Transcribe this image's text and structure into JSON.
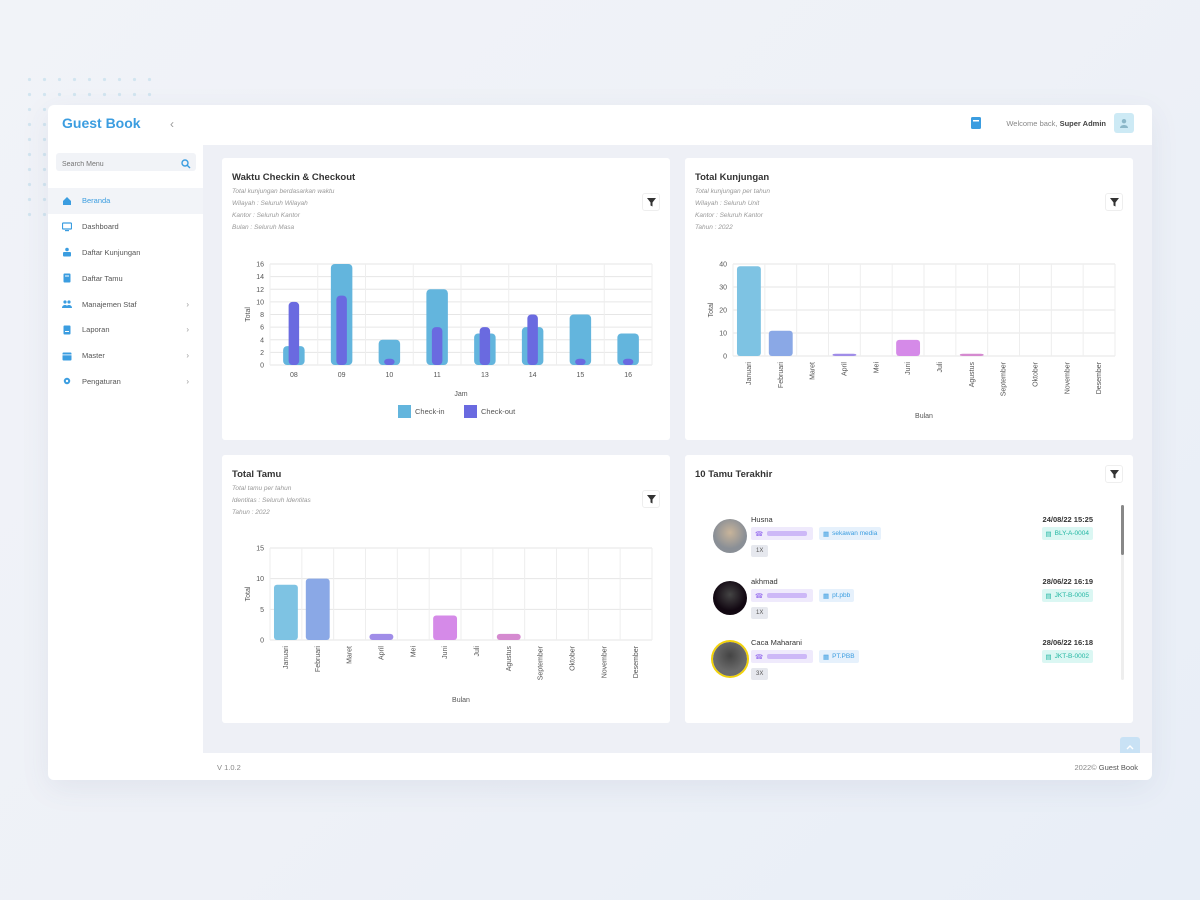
{
  "app": {
    "brand": "Guest Book",
    "version": "V 1.0.2"
  },
  "sidebar": {
    "search_placeholder": "Search Menu",
    "items": [
      {
        "label": "Beranda",
        "icon": "home-icon",
        "active": true,
        "has_children": false
      },
      {
        "label": "Dashboard",
        "icon": "monitor-icon",
        "active": false,
        "has_children": false
      },
      {
        "label": "Daftar Kunjungan",
        "icon": "visit-icon",
        "active": false,
        "has_children": false
      },
      {
        "label": "Daftar Tamu",
        "icon": "book-icon",
        "active": false,
        "has_children": false
      },
      {
        "label": "Manajemen Staf",
        "icon": "users-icon",
        "active": false,
        "has_children": true
      },
      {
        "label": "Laporan",
        "icon": "report-icon",
        "active": false,
        "has_children": true
      },
      {
        "label": "Master",
        "icon": "calendar-icon",
        "active": false,
        "has_children": true
      },
      {
        "label": "Pengaturan",
        "icon": "gear-icon",
        "active": false,
        "has_children": true
      }
    ]
  },
  "topbar": {
    "welcome": "Welcome back,",
    "user": "Super Admin"
  },
  "footer": {
    "copyright": "2022©",
    "app": "Guest Book"
  },
  "cards": {
    "checkin": {
      "title": "Waktu Checkin & Checkout",
      "subtitles": [
        "Total kunjungan berdasarkan waktu",
        "Wilayah : Seluruh Wilayah",
        "Kantor : Seluruh Kantor",
        "Bulan : Seluruh Masa"
      ]
    },
    "kunjungan": {
      "title": "Total Kunjungan",
      "subtitles": [
        "Total kunjungan per tahun",
        "Wilayah : Seluruh Unit",
        "Kantor : Seluruh Kantor",
        "Tahun : 2022"
      ]
    },
    "tamu": {
      "title": "Total Tamu",
      "subtitles": [
        "Total tamu per tahun",
        "Identitas : Seluruh Identitas",
        "Tahun : 2022"
      ]
    },
    "recent": {
      "title": "10 Tamu Terakhir"
    }
  },
  "recent_guests": [
    {
      "name": "Husna",
      "company": "sekawan media",
      "code": "BLY-A-0004",
      "date": "24/08/22 15:25",
      "count": "1X",
      "avatar_color": "#8a8f96"
    },
    {
      "name": "akhmad",
      "company": "pt.pbb",
      "code": "JKT-B-0005",
      "date": "28/06/22 16:19",
      "count": "1X",
      "avatar_color": "#120812"
    },
    {
      "name": "Caca Maharani",
      "company": "PT.PBB",
      "code": "JKT-B-0002",
      "date": "28/06/22 16:18",
      "count": "3X",
      "avatar_color": "#6b6b6b"
    }
  ],
  "chart_data": [
    {
      "type": "bar",
      "title": "Waktu Checkin & Checkout",
      "xlabel": "Jam",
      "ylabel": "Total",
      "categories": [
        "08",
        "09",
        "10",
        "11",
        "13",
        "14",
        "15",
        "16"
      ],
      "series": [
        {
          "name": "Check-in",
          "color": "#63b5dd",
          "values": [
            3,
            16,
            4,
            12,
            5,
            6,
            8,
            5
          ]
        },
        {
          "name": "Check-out",
          "color": "#6a6ae0",
          "values": [
            10,
            11,
            1,
            6,
            6,
            8,
            1,
            1
          ]
        }
      ],
      "ylim": [
        0,
        16
      ],
      "yticks": [
        0,
        2,
        4,
        6,
        8,
        10,
        12,
        14,
        16
      ],
      "grid": true,
      "legend": "bottom"
    },
    {
      "type": "bar",
      "title": "Total Kunjungan",
      "xlabel": "Bulan",
      "ylabel": "Total",
      "categories": [
        "Januari",
        "Februari",
        "Maret",
        "April",
        "Mei",
        "Juni",
        "Juli",
        "Agustus",
        "September",
        "Oktober",
        "November",
        "Desember"
      ],
      "values": [
        39,
        11,
        0,
        1,
        0,
        7,
        0,
        1,
        0,
        0,
        0,
        0
      ],
      "colors": [
        "#7ec3e3",
        "#8aa8e6",
        "#a08de8",
        "#a08de8",
        "#a08de8",
        "#d58ae8",
        "#d58ae8",
        "#d58ad0",
        "#d58ad0",
        "#d58ad0",
        "#d58ad0",
        "#d58ad0"
      ],
      "ylim": [
        0,
        40
      ],
      "yticks": [
        0,
        10,
        20,
        30,
        40
      ],
      "grid": true
    },
    {
      "type": "bar",
      "title": "Total Tamu",
      "xlabel": "Bulan",
      "ylabel": "Total",
      "categories": [
        "Januari",
        "Februari",
        "Maret",
        "April",
        "Mei",
        "Juni",
        "Juli",
        "Agustus",
        "September",
        "Oktober",
        "November",
        "Desember"
      ],
      "values": [
        9,
        10,
        0,
        1,
        0,
        4,
        0,
        1,
        0,
        0,
        0,
        0
      ],
      "colors": [
        "#7ec3e3",
        "#8aa8e6",
        "#a08de8",
        "#a08de8",
        "#a08de8",
        "#d58ae8",
        "#d58ae8",
        "#d58ad0",
        "#d58ad0",
        "#d58ad0",
        "#d58ad0",
        "#d58ad0"
      ],
      "ylim": [
        0,
        15
      ],
      "yticks": [
        0,
        5,
        10,
        15
      ],
      "grid": true
    }
  ]
}
